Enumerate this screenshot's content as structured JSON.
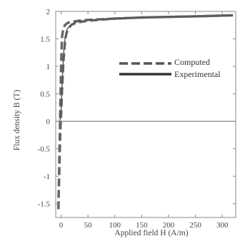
{
  "chart_data": {
    "type": "line",
    "xlabel": "Applied field H (A/m)",
    "ylabel": "Flux density B (T)",
    "xlim": [
      -10,
      325
    ],
    "ylim": [
      -1.75,
      2
    ],
    "x_ticks": [
      "0",
      "50",
      "100",
      "150",
      "200",
      "250",
      "300"
    ],
    "y_ticks": [
      "2",
      "1.5",
      "1",
      "0.5",
      "0",
      "-0.5",
      "-1",
      "-1.5"
    ],
    "grid": false,
    "legend_position": "center-right",
    "series": [
      {
        "name": "Computed",
        "style": "dashed",
        "color": "#666666",
        "x": [
          -5,
          -4.5,
          -3.5,
          -2.5,
          -1.5,
          0,
          2,
          4,
          6,
          8,
          10,
          13,
          16,
          20,
          30,
          50,
          100,
          150,
          200,
          250,
          320
        ],
        "y": [
          -1.6,
          -1.3,
          -1.0,
          -0.6,
          -0.2,
          0.1,
          0.6,
          1.0,
          1.3,
          1.5,
          1.6,
          1.67,
          1.72,
          1.76,
          1.8,
          1.83,
          1.87,
          1.89,
          1.9,
          1.91,
          1.93
        ]
      },
      {
        "name": "Computed",
        "style": "dashed",
        "color": "#666666",
        "x": [
          -5,
          -3,
          -1,
          0,
          1,
          2,
          4,
          7,
          12,
          20,
          40,
          80,
          150,
          250,
          320
        ],
        "y": [
          -1.6,
          -0.5,
          0.5,
          1.0,
          1.35,
          1.55,
          1.68,
          1.75,
          1.79,
          1.81,
          1.84,
          1.86,
          1.89,
          1.91,
          1.93
        ]
      },
      {
        "name": "Experimental",
        "style": "solid",
        "color": "#555555",
        "x": [
          -2,
          0,
          2,
          4,
          6,
          8,
          10,
          13,
          16,
          20,
          30,
          50,
          100,
          200,
          320
        ],
        "y": [
          0.0,
          0.2,
          0.7,
          1.1,
          1.4,
          1.55,
          1.65,
          1.7,
          1.74,
          1.77,
          1.81,
          1.84,
          1.87,
          1.9,
          1.92
        ]
      }
    ],
    "zero_line": {
      "y": 0,
      "color": "#888888"
    },
    "legend": [
      {
        "label": "Computed",
        "style": "dashed"
      },
      {
        "label": "Experimental",
        "style": "solid"
      }
    ]
  }
}
